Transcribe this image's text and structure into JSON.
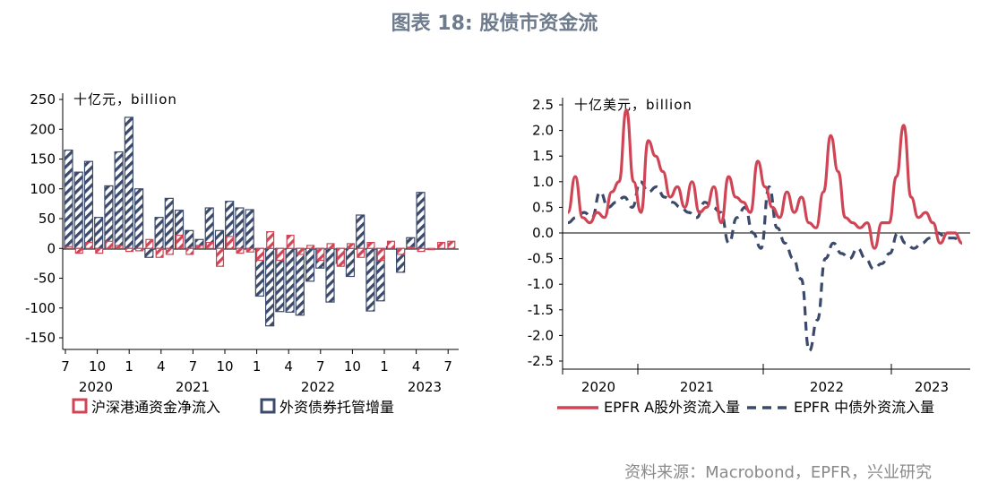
{
  "title": "图表 18: 股债市资金流",
  "source": "资料来源：Macrobond，EPFR，兴业研究",
  "colors": {
    "red": "#d04555",
    "navy": "#3b4a6b"
  },
  "chart_data": [
    {
      "type": "bar",
      "unit_label": "十亿元，billion",
      "ylim": [
        -150,
        250
      ],
      "yticks": [
        "250",
        "200",
        "150",
        "100",
        "50",
        "0",
        "-50",
        "-100",
        "-150"
      ],
      "xtick_labels": [
        "7",
        "10",
        "1",
        "4",
        "7",
        "10",
        "1",
        "4",
        "7",
        "10",
        "1",
        "4",
        "7"
      ],
      "year_labels": [
        "2020",
        "2021",
        "2022",
        "2023"
      ],
      "legend": [
        "沪深港通资金净流入",
        "外资债券托管增量"
      ],
      "series": [
        {
          "name": "沪深港通资金净流入",
          "values": [
            3,
            -8,
            10,
            -8,
            12,
            5,
            -5,
            -4,
            15,
            -15,
            -10,
            22,
            -10,
            5,
            10,
            -30,
            20,
            -8,
            -6,
            -20,
            28,
            -20,
            22,
            -10,
            5,
            -20,
            8,
            -30,
            8,
            -15,
            10,
            -20,
            12,
            -10,
            2,
            -5,
            -2,
            10,
            12
          ]
        },
        {
          "name": "外资债券托管增量",
          "values": [
            165,
            128,
            146,
            52,
            105,
            162,
            220,
            100,
            -15,
            52,
            84,
            64,
            30,
            15,
            68,
            30,
            79,
            68,
            65,
            -80,
            -130,
            -106,
            -107,
            -112,
            -55,
            -33,
            -90,
            -25,
            -47,
            56,
            -105,
            -88,
            3,
            -40,
            18,
            94
          ]
        }
      ]
    },
    {
      "type": "line",
      "unit_label": "十亿美元，billion",
      "ylim": [
        -2.5,
        2.5
      ],
      "yticks": [
        "2.5",
        "2.0",
        "1.5",
        "1.0",
        "0.5",
        "0.0",
        "-0.5",
        "-1.0",
        "-1.5",
        "-2.0",
        "-2.5"
      ],
      "year_labels": [
        "2020",
        "2021",
        "2022",
        "2023"
      ],
      "legend": [
        "EPFR A股外资流入量",
        "EPFR 中债外资流入量"
      ],
      "series": [
        {
          "name": "EPFR A股外资流入量",
          "values": [
            0.4,
            1.1,
            0.3,
            0.2,
            0.4,
            0.3,
            0.8,
            1.0,
            2.4,
            1.0,
            0.4,
            1.8,
            1.5,
            1.2,
            0.7,
            0.9,
            0.5,
            1.0,
            0.4,
            0.5,
            0.9,
            0.2,
            1.1,
            0.7,
            0.6,
            0.4,
            1.4,
            0.9,
            0.5,
            0.3,
            0.8,
            0.4,
            0.7,
            0.2,
            0.1,
            0.8,
            1.9,
            1.2,
            0.3,
            0.2,
            0.1,
            0.2,
            -0.3,
            0.2,
            0.2,
            1.1,
            2.1,
            0.7,
            0.3,
            0.4,
            0.2,
            -0.2,
            0.0,
            0.0,
            -0.2
          ]
        },
        {
          "name": "EPFR 中债外资流入量",
          "values": [
            0.2,
            0.3,
            0.4,
            0.3,
            0.8,
            0.5,
            0.6,
            0.7,
            0.5,
            1.0,
            0.8,
            0.9,
            0.7,
            0.6,
            0.5,
            0.4,
            0.3,
            0.6,
            0.5,
            0.4,
            -0.2,
            0.3,
            0.5,
            0.0,
            -0.3,
            0.9,
            0.1,
            -0.2,
            -0.5,
            -0.9,
            -2.3,
            -1.7,
            -0.5,
            -0.2,
            -0.4,
            -0.5,
            -0.3,
            -0.5,
            -0.7,
            -0.6,
            -0.4,
            0.0,
            -0.2,
            -0.3,
            -0.2,
            -0.1,
            0.0,
            -0.1,
            -0.1,
            -0.2
          ]
        }
      ]
    }
  ]
}
